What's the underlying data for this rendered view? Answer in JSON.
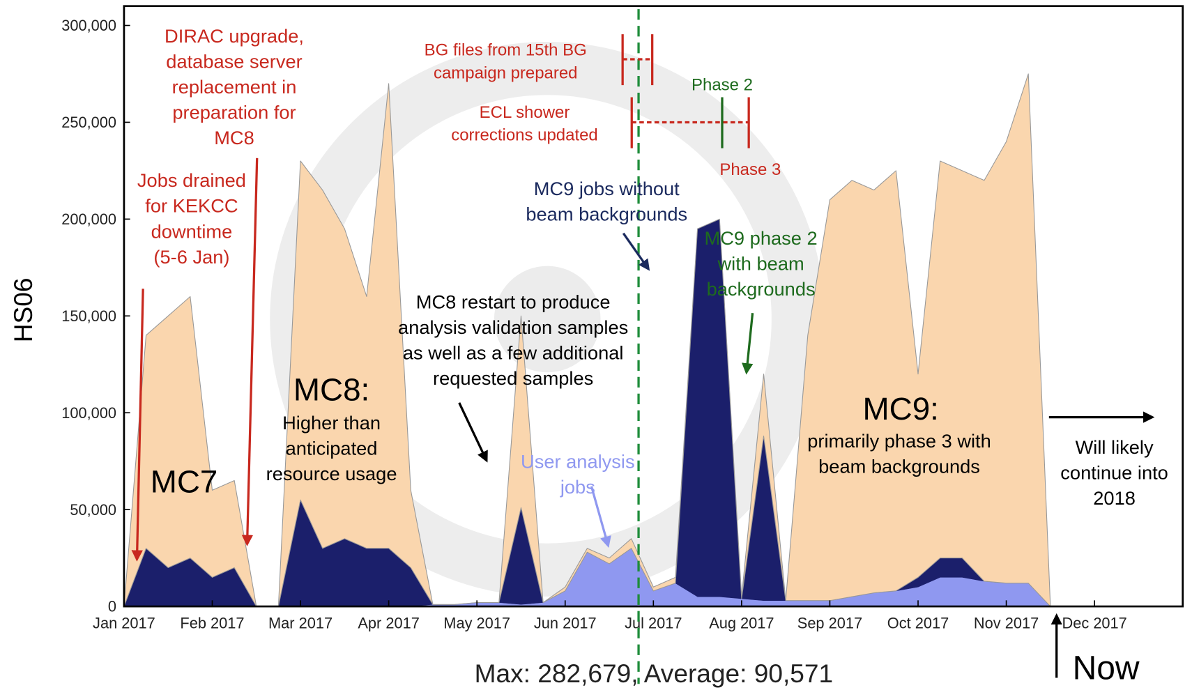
{
  "chart_data": {
    "type": "area",
    "stacked": true,
    "ylabel": "HS06",
    "footer": "Max: 282,679, Average: 90,571",
    "categories": [
      "Jan 2017",
      null,
      null,
      null,
      "Feb 2017",
      null,
      null,
      null,
      "Mar 2017",
      null,
      null,
      null,
      "Apr 2017",
      null,
      null,
      null,
      "May 2017",
      null,
      null,
      null,
      "Jun 2017",
      null,
      null,
      null,
      "Jul 2017",
      null,
      null,
      null,
      "Aug 2017",
      null,
      null,
      null,
      "Sep 2017",
      null,
      null,
      null,
      "Oct 2017",
      null,
      null,
      null,
      "Nov 2017",
      null,
      null,
      null,
      "Dec 2017",
      null,
      null,
      null
    ],
    "series": [
      {
        "color": "#8f98f0",
        "values": [
          0,
          0,
          0,
          0,
          0,
          0,
          0,
          0,
          0,
          0,
          0,
          0,
          0,
          0,
          1000,
          1000,
          2000,
          2000,
          1000,
          2000,
          8000,
          28000,
          22000,
          30000,
          8000,
          12000,
          5000,
          5000,
          4000,
          3000,
          3000,
          3000,
          3000,
          5000,
          7000,
          8000,
          10000,
          15000,
          15000,
          13000,
          12000,
          12000,
          0,
          null,
          null,
          null,
          null,
          null
        ]
      },
      {
        "color": "#1b1f6b",
        "values": [
          0,
          30000,
          20000,
          25000,
          15000,
          20000,
          0,
          0,
          55000,
          30000,
          35000,
          30000,
          30000,
          20000,
          0,
          0,
          0,
          0,
          50000,
          0,
          0,
          0,
          0,
          0,
          0,
          0,
          190000,
          195000,
          0,
          85000,
          0,
          0,
          0,
          0,
          0,
          0,
          5000,
          10000,
          10000,
          0,
          0,
          0,
          0,
          null,
          null,
          null,
          null,
          null
        ]
      },
      {
        "color": "#fad6ae",
        "values": [
          0,
          110000,
          130000,
          135000,
          45000,
          45000,
          0,
          0,
          175000,
          185000,
          160000,
          130000,
          240000,
          40000,
          0,
          0,
          0,
          0,
          99000,
          0,
          2000,
          2000,
          3000,
          5000,
          2000,
          3000,
          0,
          0,
          1000,
          32000,
          0,
          137000,
          207000,
          215000,
          208000,
          217000,
          105000,
          205000,
          200000,
          207000,
          228000,
          263000,
          0,
          null,
          null,
          null,
          null,
          null
        ]
      }
    ],
    "ylim": [
      0,
      310000
    ],
    "yticks": [
      0,
      {
        "value": 50000,
        "label": "50,000"
      },
      {
        "value": 100000,
        "label": "100,000"
      },
      {
        "value": 150000,
        "label": "150,000"
      },
      {
        "value": 200000,
        "label": "200,000"
      },
      {
        "value": 250000,
        "label": "250,000"
      },
      {
        "value": 300000,
        "label": "300,000"
      }
    ],
    "annotations": [
      {
        "lines": [
          "DIRAC upgrade,",
          "database server",
          "replacement in",
          "preparation for",
          "MC8"
        ],
        "color": "#c8281e"
      },
      {
        "lines": [
          "Jobs drained",
          "for KEKCC",
          "downtime",
          "(5-6 Jan)"
        ],
        "color": "#c8281e"
      },
      {
        "lines": [
          "MC7"
        ],
        "color": "#000000"
      },
      {
        "lines": [
          "MC8:"
        ],
        "color": "#000000"
      },
      {
        "lines": [
          "Higher than",
          "anticipated",
          "resource usage"
        ],
        "color": "#000000"
      },
      {
        "lines": [
          "MC8 restart to produce",
          "analysis validation samples",
          "as well as a few additional",
          "requested samples"
        ],
        "color": "#000000"
      },
      {
        "lines": [
          "User analysis",
          "jobs"
        ],
        "color": "#8f98f0"
      },
      {
        "lines": [
          "MC9 jobs without",
          "beam backgrounds"
        ],
        "color": "#1b2a5e"
      },
      {
        "lines": [
          "MC9 phase 2",
          "with beam",
          "backgrounds"
        ],
        "color": "#1e6b1e"
      },
      {
        "lines": [
          "BG files from 15th BG",
          "campaign prepared"
        ],
        "color": "#c8281e"
      },
      {
        "lines": [
          "ECL shower",
          "corrections updated"
        ],
        "color": "#c8281e"
      },
      {
        "lines": [
          "Phase 2"
        ],
        "color": "#1e6b1e"
      },
      {
        "lines": [
          "Phase 3"
        ],
        "color": "#c8281e"
      },
      {
        "lines": [
          "MC9:"
        ],
        "color": "#000000"
      },
      {
        "lines": [
          "primarily phase 3 with",
          "beam backgrounds"
        ],
        "color": "#000000"
      },
      {
        "lines": [
          "Will likely",
          "continue into",
          "2018"
        ],
        "color": "#000000"
      },
      {
        "lines": [
          "Now"
        ],
        "color": "#000000"
      }
    ]
  }
}
